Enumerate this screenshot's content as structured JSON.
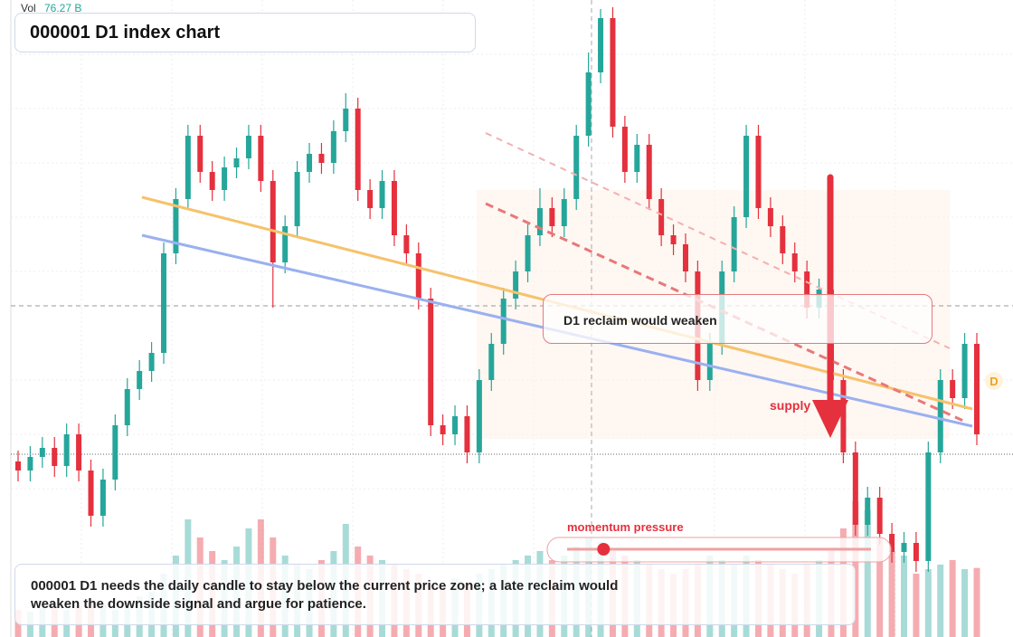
{
  "header": {
    "volume_label": "Vol",
    "volume_value_label": "76.27 B",
    "title": "000001 D1 index chart"
  },
  "chart_data": {
    "type": "candlestick",
    "ylim": [
      0,
      704
    ],
    "volume_lim": [
      0,
      150
    ],
    "up_color": "#26a69a",
    "down_color": "#e5303d",
    "open": [
      194,
      184,
      199,
      209,
      189,
      224,
      184,
      134,
      174,
      234,
      274,
      294,
      314,
      424,
      484,
      554,
      514,
      494,
      519,
      529,
      554,
      504,
      414,
      454,
      514,
      534,
      524,
      559,
      584,
      494,
      474,
      504,
      444,
      424,
      374,
      234,
      224,
      244,
      204,
      284,
      324,
      374,
      404,
      444,
      474,
      454,
      484,
      554,
      624,
      684,
      564,
      514,
      544,
      484,
      444,
      434,
      404,
      284,
      324,
      404,
      464,
      554,
      474,
      454,
      424,
      404,
      364,
      384,
      284,
      204,
      124,
      154,
      114,
      94,
      104,
      84,
      204,
      284,
      264,
      324
    ],
    "high": [
      206,
      211,
      221,
      221,
      236,
      236,
      196,
      186,
      246,
      286,
      306,
      326,
      436,
      496,
      566,
      566,
      526,
      531,
      541,
      566,
      566,
      516,
      466,
      526,
      546,
      546,
      571,
      601,
      596,
      506,
      516,
      516,
      456,
      436,
      386,
      246,
      256,
      256,
      296,
      336,
      386,
      416,
      456,
      496,
      486,
      496,
      566,
      646,
      694,
      696,
      576,
      556,
      556,
      496,
      456,
      446,
      416,
      336,
      416,
      476,
      566,
      566,
      486,
      466,
      436,
      416,
      396,
      396,
      296,
      216,
      166,
      166,
      126,
      116,
      116,
      216,
      296,
      296,
      336,
      336
    ],
    "low": [
      172,
      172,
      187,
      177,
      177,
      172,
      122,
      122,
      162,
      222,
      262,
      282,
      302,
      412,
      472,
      502,
      482,
      482,
      507,
      517,
      492,
      364,
      402,
      442,
      502,
      512,
      512,
      547,
      482,
      462,
      462,
      432,
      412,
      362,
      222,
      212,
      212,
      192,
      192,
      272,
      312,
      362,
      392,
      432,
      442,
      442,
      472,
      542,
      612,
      552,
      502,
      502,
      472,
      432,
      422,
      392,
      272,
      272,
      312,
      392,
      452,
      462,
      442,
      412,
      392,
      352,
      352,
      272,
      192,
      112,
      112,
      102,
      82,
      82,
      72,
      72,
      192,
      252,
      252,
      212
    ],
    "close": [
      184,
      199,
      209,
      189,
      224,
      184,
      134,
      174,
      234,
      274,
      294,
      314,
      424,
      484,
      554,
      514,
      494,
      519,
      529,
      554,
      504,
      414,
      454,
      514,
      534,
      524,
      559,
      584,
      494,
      474,
      504,
      444,
      424,
      374,
      234,
      224,
      244,
      204,
      284,
      324,
      374,
      404,
      444,
      474,
      454,
      484,
      554,
      624,
      684,
      564,
      514,
      544,
      484,
      444,
      434,
      404,
      284,
      324,
      404,
      464,
      554,
      474,
      454,
      424,
      404,
      364,
      384,
      284,
      204,
      124,
      154,
      114,
      94,
      104,
      84,
      204,
      284,
      264,
      324,
      224
    ],
    "volume": [
      30,
      28,
      35,
      32,
      30,
      34,
      40,
      36,
      30,
      38,
      45,
      50,
      70,
      90,
      130,
      110,
      95,
      85,
      100,
      120,
      130,
      110,
      90,
      80,
      75,
      85,
      95,
      125,
      100,
      90,
      85,
      80,
      75,
      70,
      60,
      55,
      65,
      60,
      70,
      75,
      80,
      85,
      90,
      95,
      85,
      90,
      100,
      110,
      105,
      95,
      90,
      85,
      80,
      75,
      70,
      75,
      80,
      90,
      85,
      80,
      90,
      85,
      80,
      75,
      70,
      80,
      85,
      95,
      120,
      150,
      140,
      110,
      95,
      90,
      70,
      75,
      80,
      85,
      75,
      76.27
    ],
    "annotations": {
      "zone": "D1 reclaim would weaken",
      "supply": "supply",
      "marker": "D"
    },
    "momentum": {
      "label": "momentum pressure",
      "range": [
        0,
        100
      ],
      "value": 12
    }
  },
  "footer": {
    "text": "000001 D1 needs the daily candle to stay below the current price zone; a late reclaim would weaken the downside signal and argue for patience."
  }
}
